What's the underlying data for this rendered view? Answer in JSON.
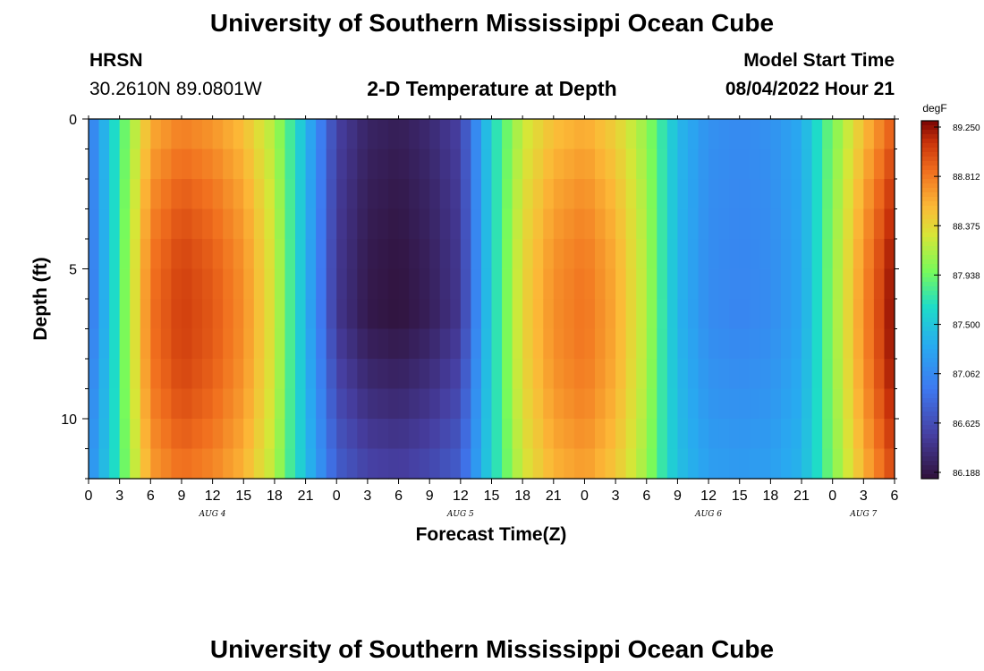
{
  "header": {
    "title": "University of Southern Mississippi Ocean Cube",
    "station": "HRSN",
    "coords": "30.2610N  89.0801W",
    "subtitle": "2-D Temperature at Depth",
    "start_label": "Model Start Time",
    "start_value": "08/04/2022 Hour 21"
  },
  "footer": {
    "title": "University of Southern Mississippi Ocean Cube"
  },
  "chart_data": {
    "type": "heatmap",
    "title": "2-D Temperature at Depth",
    "xlabel": "Forecast Time(Z)",
    "ylabel": "Depth (ft)",
    "x_range_hours": [
      0,
      78
    ],
    "y_range_ft": [
      0,
      12
    ],
    "x_tick_labels": [
      "0",
      "3",
      "6",
      "9",
      "12",
      "15",
      "18",
      "21",
      "0",
      "3",
      "6",
      "9",
      "12",
      "15",
      "18",
      "21",
      "0",
      "3",
      "6",
      "9",
      "12",
      "15",
      "18",
      "21",
      "0",
      "3",
      "6"
    ],
    "y_tick_values": [
      0,
      5,
      10
    ],
    "y_tick_labels": [
      "0",
      "5",
      "10"
    ],
    "day_labels": [
      {
        "label": "AUG 4",
        "hour": 12
      },
      {
        "label": "AUG 5",
        "hour": 36
      },
      {
        "label": "AUG 6",
        "hour": 60
      },
      {
        "label": "AUG 7",
        "hour": 75
      }
    ],
    "colorbar": {
      "units": "degF",
      "min": 86.188,
      "max": 89.25,
      "tick_labels": [
        "89.250",
        "88.812",
        "88.375",
        "87.938",
        "87.500",
        "87.062",
        "86.625",
        "86.188"
      ]
    },
    "surface_temp_profile": {
      "hours": [
        0,
        3,
        6,
        9,
        12,
        15,
        18,
        21,
        24,
        27,
        30,
        33,
        36,
        39,
        42,
        45,
        48,
        51,
        54,
        57,
        60,
        63,
        66,
        69,
        72,
        75,
        78
      ],
      "degF": [
        86.9,
        87.8,
        88.7,
        88.9,
        88.8,
        88.6,
        88.2,
        87.4,
        86.5,
        86.25,
        86.2,
        86.3,
        86.5,
        87.6,
        88.3,
        88.6,
        88.7,
        88.5,
        88.1,
        87.4,
        87.1,
        87.05,
        87.1,
        87.3,
        88.0,
        88.6,
        89.1
      ]
    }
  }
}
